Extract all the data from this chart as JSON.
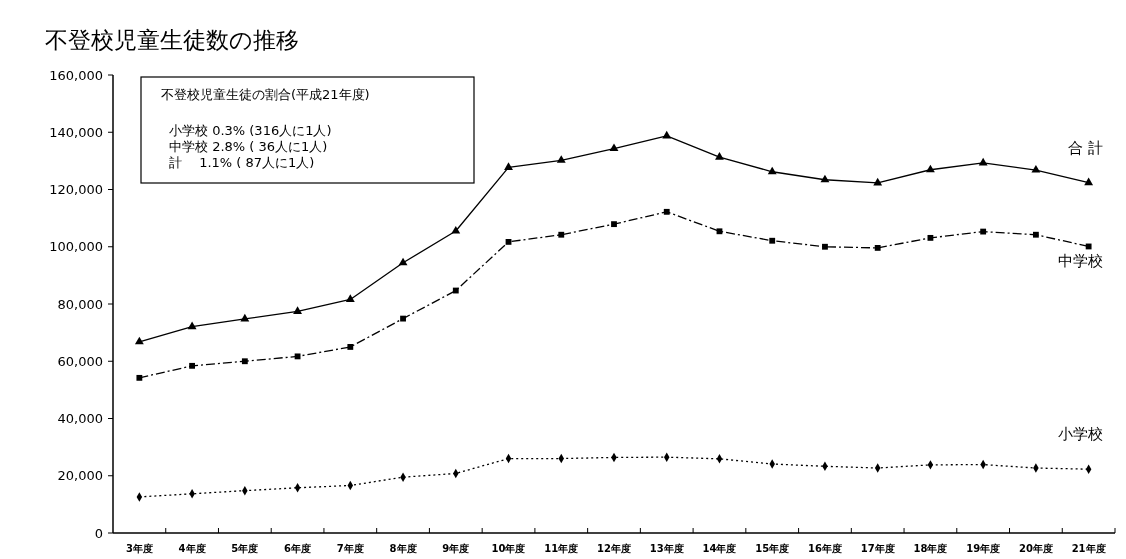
{
  "chart_data": {
    "type": "line",
    "title": "不登校児童生徒数の推移",
    "categories": [
      "3年度",
      "4年度",
      "5年度",
      "6年度",
      "7年度",
      "8年度",
      "9年度",
      "10年度",
      "11年度",
      "12年度",
      "13年度",
      "14年度",
      "15年度",
      "16年度",
      "17年度",
      "18年度",
      "19年度",
      "20年度",
      "21年度"
    ],
    "series": [
      {
        "name": "合 計",
        "color": "#000000",
        "marker": "triangle",
        "line_style": "solid",
        "values": [
          66800,
          72100,
          74800,
          77400,
          81600,
          94400,
          105500,
          127700,
          130200,
          134300,
          138700,
          131300,
          126200,
          123400,
          122300,
          126900,
          129300,
          126800,
          122400
        ]
      },
      {
        "name": "中学校",
        "color": "#000000",
        "marker": "square",
        "line_style": "dashed",
        "values": [
          54200,
          58400,
          60000,
          61700,
          65000,
          74900,
          84700,
          101700,
          104200,
          107900,
          112200,
          105400,
          102100,
          100000,
          99600,
          103100,
          105300,
          104200,
          100100
        ]
      },
      {
        "name": "小学校",
        "color": "#000000",
        "marker": "diamond",
        "line_style": "dotted",
        "values": [
          12600,
          13700,
          14800,
          15800,
          16600,
          19500,
          20800,
          26000,
          26000,
          26400,
          26500,
          25900,
          24100,
          23300,
          22700,
          23800,
          23900,
          22700,
          22300
        ]
      }
    ],
    "ylim": [
      0,
      160000
    ],
    "yticks": [
      {
        "value": 0,
        "label": "0"
      },
      {
        "value": 20000,
        "label": "20,000"
      },
      {
        "value": 40000,
        "label": "40,000"
      },
      {
        "value": 60000,
        "label": "60,000"
      },
      {
        "value": 80000,
        "label": "80,000"
      },
      {
        "value": 100000,
        "label": "100,000"
      },
      {
        "value": 120000,
        "label": "120,000"
      },
      {
        "value": 140000,
        "label": "140,000"
      },
      {
        "value": 160000,
        "label": "160,000"
      }
    ],
    "annotations": [
      "不登校児童生徒の割合(平成21年度)",
      "小学校 0.3% (316人に1人)",
      "中学校 2.8% ( 36人に1人)",
      "計　 1.1% ( 87人に1人)"
    ],
    "grid": false
  }
}
